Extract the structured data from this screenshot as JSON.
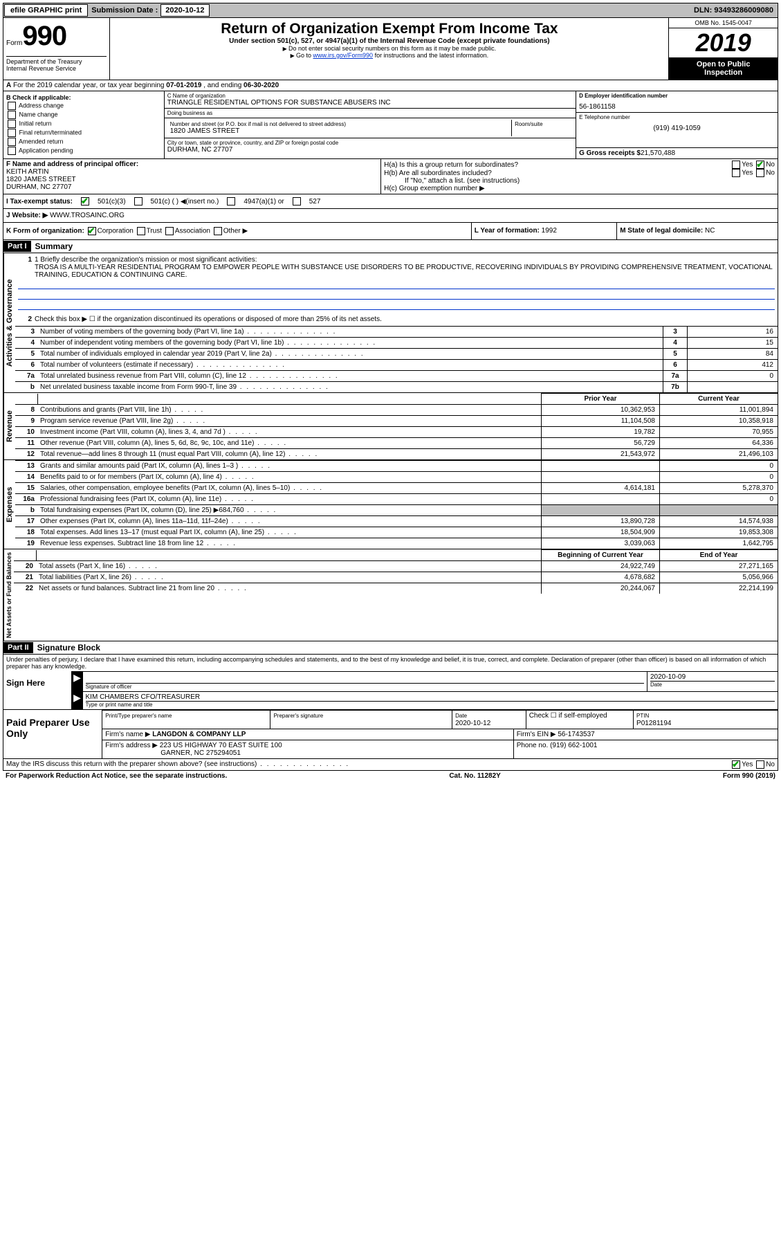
{
  "topbar": {
    "efile_label": "efile GRAPHIC print",
    "submission_label": "Submission Date :",
    "submission_date": "2020-10-12",
    "dln_label": "DLN:",
    "dln": "93493286009080"
  },
  "header": {
    "form_word": "Form",
    "form_number": "990",
    "dept1": "Department of the Treasury",
    "dept2": "Internal Revenue Service",
    "title": "Return of Organization Exempt From Income Tax",
    "subtitle": "Under section 501(c), 527, or 4947(a)(1) of the Internal Revenue Code (except private foundations)",
    "note1": "Do not enter social security numbers on this form as it may be made public.",
    "note2_pre": "Go to ",
    "note2_link": "www.irs.gov/Form990",
    "note2_post": " for instructions and the latest information.",
    "omb": "OMB No. 1545-0047",
    "year": "2019",
    "open1": "Open to Public",
    "open2": "Inspection"
  },
  "row_a": {
    "label_a": "A",
    "text": "For the 2019 calendar year, or tax year beginning ",
    "begin": "07-01-2019",
    "mid": " , and ending ",
    "end": "06-30-2020"
  },
  "col_b": {
    "header": "B Check if applicable:",
    "items": [
      "Address change",
      "Name change",
      "Initial return",
      "Final return/terminated",
      "Amended return",
      "Application pending"
    ]
  },
  "org": {
    "name_label": "C Name of organization",
    "name": "TRIANGLE RESIDENTIAL OPTIONS FOR SUBSTANCE ABUSERS INC",
    "dba_label": "Doing business as",
    "dba": "",
    "addr_label": "Number and street (or P.O. box if mail is not delivered to street address)",
    "addr": "1820 JAMES STREET",
    "room_label": "Room/suite",
    "city_label": "City or town, state or province, country, and ZIP or foreign postal code",
    "city": "DURHAM, NC  27707"
  },
  "right_col": {
    "ein_label": "D Employer identification number",
    "ein": "56-1861158",
    "phone_label": "E Telephone number",
    "phone": "(919) 419-1059",
    "gross_label": "G Gross receipts $",
    "gross": "21,570,488"
  },
  "f_box": {
    "label": "F  Name and address of principal officer:",
    "name": "KEITH ARTIN",
    "addr": "1820 JAMES STREET",
    "city": "DURHAM, NC  27707"
  },
  "h_box": {
    "ha_label": "H(a)  Is this a group return for subordinates?",
    "hb_label": "H(b)  Are all subordinates included?",
    "hb_note": "If \"No,\" attach a list. (see instructions)",
    "hc_label": "H(c)  Group exemption number ▶",
    "yes": "Yes",
    "no": "No"
  },
  "row_i": {
    "label": "I  Tax-exempt status:",
    "opt1": "501(c)(3)",
    "opt2": "501(c) (  ) ◀(insert no.)",
    "opt3": "4947(a)(1) or",
    "opt4": "527"
  },
  "row_j": {
    "label": "J  Website: ▶",
    "value": "WWW.TROSAINC.ORG"
  },
  "row_k": {
    "label": "K Form of organization:",
    "opts": [
      "Corporation",
      "Trust",
      "Association",
      "Other ▶"
    ],
    "l_label": "L Year of formation:",
    "l_val": "1992",
    "m_label": "M State of legal domicile:",
    "m_val": "NC"
  },
  "part1": {
    "header": "Part I",
    "title": "Summary",
    "line1_label": "1  Briefly describe the organization's mission or most significant activities:",
    "mission": "TROSA IS A MULTI-YEAR RESIDENTIAL PROGRAM TO EMPOWER PEOPLE WITH SUBSTANCE USE DISORDERS TO BE PRODUCTIVE, RECOVERING INDIVIDUALS BY PROVIDING COMPREHENSIVE TREATMENT, VOCATIONAL TRAINING, EDUCATION & CONTINUING CARE.",
    "line2": "Check this box ▶ ☐ if the organization discontinued its operations or disposed of more than 25% of its net assets.",
    "section_ag": "Activities & Governance",
    "lines_ag": [
      {
        "n": "3",
        "d": "Number of voting members of the governing body (Part VI, line 1a)",
        "box": "3",
        "v": "16"
      },
      {
        "n": "4",
        "d": "Number of independent voting members of the governing body (Part VI, line 1b)",
        "box": "4",
        "v": "15"
      },
      {
        "n": "5",
        "d": "Total number of individuals employed in calendar year 2019 (Part V, line 2a)",
        "box": "5",
        "v": "84"
      },
      {
        "n": "6",
        "d": "Total number of volunteers (estimate if necessary)",
        "box": "6",
        "v": "412"
      },
      {
        "n": "7a",
        "d": "Total unrelated business revenue from Part VIII, column (C), line 12",
        "box": "7a",
        "v": "0"
      },
      {
        "n": "b",
        "d": "Net unrelated business taxable income from Form 990-T, line 39",
        "box": "7b",
        "v": ""
      }
    ],
    "prior_year": "Prior Year",
    "current_year": "Current Year",
    "section_rev": "Revenue",
    "lines_rev": [
      {
        "n": "8",
        "d": "Contributions and grants (Part VIII, line 1h)",
        "py": "10,362,953",
        "cy": "11,001,894"
      },
      {
        "n": "9",
        "d": "Program service revenue (Part VIII, line 2g)",
        "py": "11,104,508",
        "cy": "10,358,918"
      },
      {
        "n": "10",
        "d": "Investment income (Part VIII, column (A), lines 3, 4, and 7d )",
        "py": "19,782",
        "cy": "70,955"
      },
      {
        "n": "11",
        "d": "Other revenue (Part VIII, column (A), lines 5, 6d, 8c, 9c, 10c, and 11e)",
        "py": "56,729",
        "cy": "64,336"
      },
      {
        "n": "12",
        "d": "Total revenue—add lines 8 through 11 (must equal Part VIII, column (A), line 12)",
        "py": "21,543,972",
        "cy": "21,496,103"
      }
    ],
    "section_exp": "Expenses",
    "lines_exp": [
      {
        "n": "13",
        "d": "Grants and similar amounts paid (Part IX, column (A), lines 1–3 )",
        "py": "",
        "cy": "0"
      },
      {
        "n": "14",
        "d": "Benefits paid to or for members (Part IX, column (A), line 4)",
        "py": "",
        "cy": "0"
      },
      {
        "n": "15",
        "d": "Salaries, other compensation, employee benefits (Part IX, column (A), lines 5–10)",
        "py": "4,614,181",
        "cy": "5,278,370"
      },
      {
        "n": "16a",
        "d": "Professional fundraising fees (Part IX, column (A), line 11e)",
        "py": "",
        "cy": "0"
      },
      {
        "n": "b",
        "d": "Total fundraising expenses (Part IX, column (D), line 25) ▶684,760",
        "py": "GREY",
        "cy": "GREY"
      },
      {
        "n": "17",
        "d": "Other expenses (Part IX, column (A), lines 11a–11d, 11f–24e)",
        "py": "13,890,728",
        "cy": "14,574,938"
      },
      {
        "n": "18",
        "d": "Total expenses. Add lines 13–17 (must equal Part IX, column (A), line 25)",
        "py": "18,504,909",
        "cy": "19,853,308"
      },
      {
        "n": "19",
        "d": "Revenue less expenses. Subtract line 18 from line 12",
        "py": "3,039,063",
        "cy": "1,642,795"
      }
    ],
    "beg_year": "Beginning of Current Year",
    "end_year": "End of Year",
    "section_na": "Net Assets or Fund Balances",
    "lines_na": [
      {
        "n": "20",
        "d": "Total assets (Part X, line 16)",
        "py": "24,922,749",
        "cy": "27,271,165"
      },
      {
        "n": "21",
        "d": "Total liabilities (Part X, line 26)",
        "py": "4,678,682",
        "cy": "5,056,966"
      },
      {
        "n": "22",
        "d": "Net assets or fund balances. Subtract line 21 from line 20",
        "py": "20,244,067",
        "cy": "22,214,199"
      }
    ]
  },
  "part2": {
    "header": "Part II",
    "title": "Signature Block",
    "intro": "Under penalties of perjury, I declare that I have examined this return, including accompanying schedules and statements, and to the best of my knowledge and belief, it is true, correct, and complete. Declaration of preparer (other than officer) is based on all information of which preparer has any knowledge.",
    "sign_here": "Sign Here",
    "sig_officer_label": "Signature of officer",
    "sig_date": "2020-10-09",
    "date_label": "Date",
    "officer_name": "KIM CHAMBERS  CFO/TREASURER",
    "officer_name_label": "Type or print name and title",
    "paid_label": "Paid Preparer Use Only",
    "prep_name_label": "Print/Type preparer's name",
    "prep_sig_label": "Preparer's signature",
    "prep_date": "2020-10-12",
    "check_if": "Check ☐ if self-employed",
    "ptin_label": "PTIN",
    "ptin": "P01281194",
    "firm_name_label": "Firm's name    ▶",
    "firm_name": "LANGDON & COMPANY LLP",
    "firm_ein_label": "Firm's EIN ▶",
    "firm_ein": "56-1743537",
    "firm_addr_label": "Firm's address ▶",
    "firm_addr": "223 US HIGHWAY 70 EAST SUITE 100",
    "firm_city": "GARNER, NC  275294051",
    "firm_phone_label": "Phone no.",
    "firm_phone": "(919) 662-1001",
    "may_irs": "May the IRS discuss this return with the preparer shown above? (see instructions)",
    "yes": "Yes",
    "no": "No"
  },
  "footer": {
    "left": "For Paperwork Reduction Act Notice, see the separate instructions.",
    "mid": "Cat. No. 11282Y",
    "right": "Form 990 (2019)"
  }
}
